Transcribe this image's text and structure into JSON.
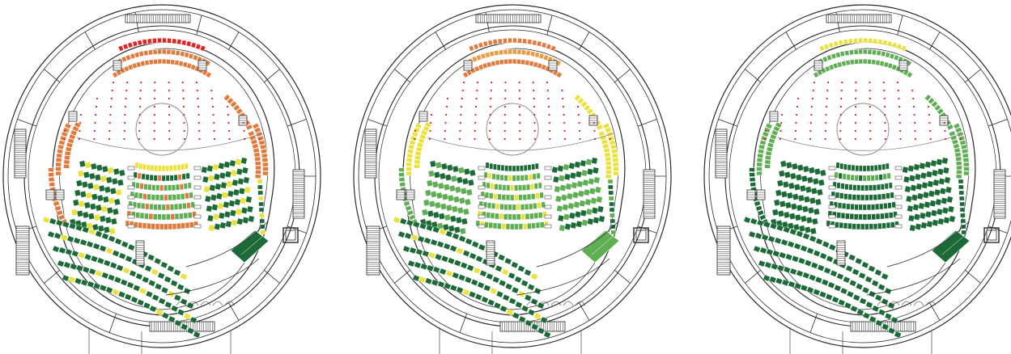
{
  "colors": {
    "red": "#e8201e",
    "orange": "#e3793b",
    "orange_light": "#ed9a3e",
    "yellow": "#ece13a",
    "light_green": "#5fae54",
    "dark_green": "#1c6a37",
    "line": "#2a2a2a",
    "dot": "#e01f1f"
  },
  "legend_scale": [
    "dark_green",
    "light_green",
    "yellow",
    "orange",
    "red"
  ],
  "plans": [
    {
      "id": "plan-1",
      "top_balcony": [
        "red",
        "orange",
        "orange"
      ],
      "side_balcony": "orange",
      "lower_side_balcony": "orange",
      "stalls_center": [
        "yellow",
        "dark_green",
        "light_green",
        "light_green",
        "light_green",
        "light_green",
        "orange"
      ],
      "stalls_side": [
        "dark_green",
        "dark_green",
        "dark_green",
        "dark_green",
        "dark_green",
        "dark_green",
        "dark_green"
      ],
      "stalls_center_accent": "orange",
      "stalls_side_accent": "yellow",
      "rear_rows": [
        "dark_green",
        "dark_green",
        "dark_green",
        "dark_green",
        "dark_green"
      ],
      "rear_accent": "yellow",
      "box_block": "dark_green"
    },
    {
      "id": "plan-2",
      "top_balcony": [
        "orange",
        "orange_light",
        "orange"
      ],
      "side_balcony": "yellow",
      "lower_side_balcony": "light_green",
      "stalls_center": [
        "dark_green",
        "light_green",
        "light_green",
        "light_green",
        "light_green",
        "light_green",
        "light_green"
      ],
      "stalls_side": [
        "dark_green",
        "dark_green",
        "light_green",
        "light_green",
        "light_green",
        "dark_green",
        "dark_green"
      ],
      "stalls_center_accent": "yellow",
      "stalls_side_accent": "light_green",
      "rear_rows": [
        "dark_green",
        "dark_green",
        "dark_green",
        "dark_green",
        "dark_green"
      ],
      "rear_accent": "yellow",
      "box_block": "light_green"
    },
    {
      "id": "plan-3",
      "top_balcony": [
        "yellow",
        "light_green",
        "light_green"
      ],
      "side_balcony": "light_green",
      "lower_side_balcony": "dark_green",
      "stalls_center": [
        "dark_green",
        "light_green",
        "dark_green",
        "dark_green",
        "dark_green",
        "dark_green",
        "dark_green"
      ],
      "stalls_side": [
        "dark_green",
        "dark_green",
        "dark_green",
        "dark_green",
        "dark_green",
        "dark_green",
        "dark_green"
      ],
      "stalls_center_accent": "dark_green",
      "stalls_side_accent": "dark_green",
      "rear_rows": [
        "dark_green",
        "dark_green",
        "dark_green",
        "dark_green",
        "dark_green"
      ],
      "rear_accent": "dark_green",
      "box_block": "dark_green"
    }
  ]
}
